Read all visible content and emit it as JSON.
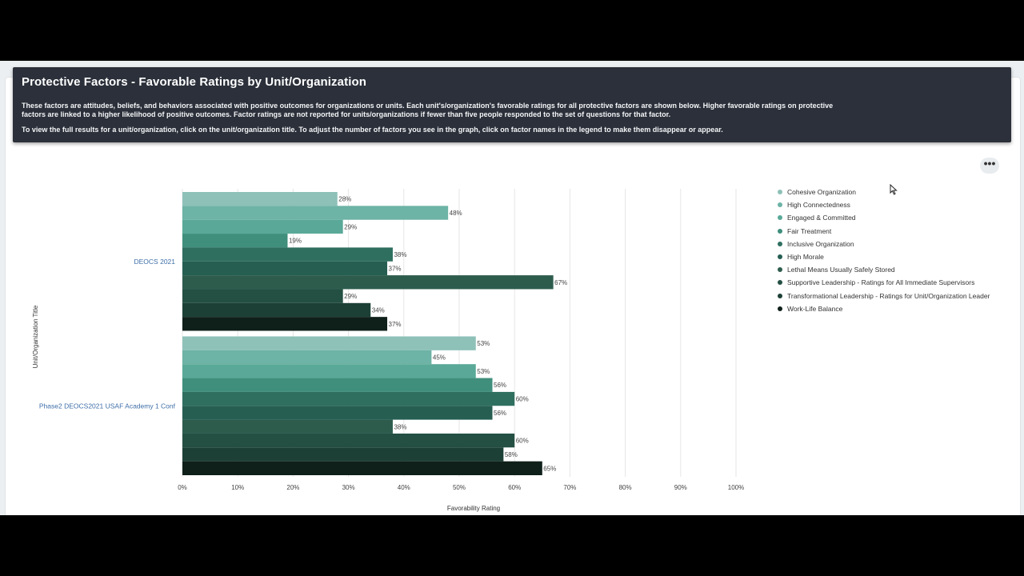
{
  "banner": {
    "title": "Protective Factors - Favorable Ratings by Unit/Organization",
    "paragraph1": "These factors are attitudes, beliefs, and behaviors associated with positive outcomes for organizations or units. Each unit's/organization's favorable ratings for all protective factors are shown below. Higher favorable ratings on protective factors are linked to a higher likelihood of positive outcomes. Factor ratings are not reported for units/organizations if fewer than five people responded to the set of questions for that factor.",
    "paragraph2": "To view the full results for a unit/organization, click on the unit/organization title. To adjust the number of factors you see in the graph, click on factor names in the legend to make them disappear or appear."
  },
  "more_button_label": "•••",
  "chart_data": {
    "type": "bar",
    "orientation": "horizontal",
    "categories": [
      "DEOCS 2021",
      "Phase2 DEOCS2021 USAF Academy 1 Conf"
    ],
    "xlabel": "Favorability Rating",
    "ylabel": "Unit/Organization Title",
    "xlim": [
      0,
      100
    ],
    "x_ticks": [
      "0%",
      "10%",
      "20%",
      "30%",
      "40%",
      "50%",
      "60%",
      "70%",
      "80%",
      "90%",
      "100%"
    ],
    "grid": "vertical",
    "legend_position": "right",
    "series": [
      {
        "name": "Cohesive Organization",
        "values": [
          28,
          53
        ],
        "labels": [
          "28%",
          "53%"
        ],
        "color": "#8ec1b8"
      },
      {
        "name": "High Connectedness",
        "values": [
          48,
          45
        ],
        "labels": [
          "48%",
          "45%"
        ],
        "color": "#6db3a6"
      },
      {
        "name": "Engaged & Committed",
        "values": [
          29,
          53
        ],
        "labels": [
          "29%",
          "53%"
        ],
        "color": "#5aa998"
      },
      {
        "name": "Fair Treatment",
        "values": [
          19,
          56
        ],
        "labels": [
          "19%",
          "56%"
        ],
        "color": "#3f8f7c"
      },
      {
        "name": "Inclusive Organization",
        "values": [
          38,
          60
        ],
        "labels": [
          "38%",
          "60%"
        ],
        "color": "#2f6f60"
      },
      {
        "name": "High Morale",
        "values": [
          37,
          56
        ],
        "labels": [
          "37%",
          "56%"
        ],
        "color": "#265e52"
      },
      {
        "name": "Lethal Means Usually Safely Stored",
        "values": [
          67,
          38
        ],
        "labels": [
          "67%",
          "38%"
        ],
        "color": "#2d5c4d"
      },
      {
        "name": "Supportive Leadership - Ratings for All Immediate Supervisors",
        "values": [
          29,
          60
        ],
        "labels": [
          "29%",
          "60%"
        ],
        "color": "#244f43"
      },
      {
        "name": "Transformational Leadership - Ratings for Unit/Organization Leader",
        "values": [
          34,
          58
        ],
        "labels": [
          "34%",
          "58%"
        ],
        "color": "#1d4036"
      },
      {
        "name": "Work-Life Balance",
        "values": [
          37,
          65
        ],
        "labels": [
          "37%",
          "65%"
        ],
        "color": "#0f1f19"
      }
    ]
  }
}
